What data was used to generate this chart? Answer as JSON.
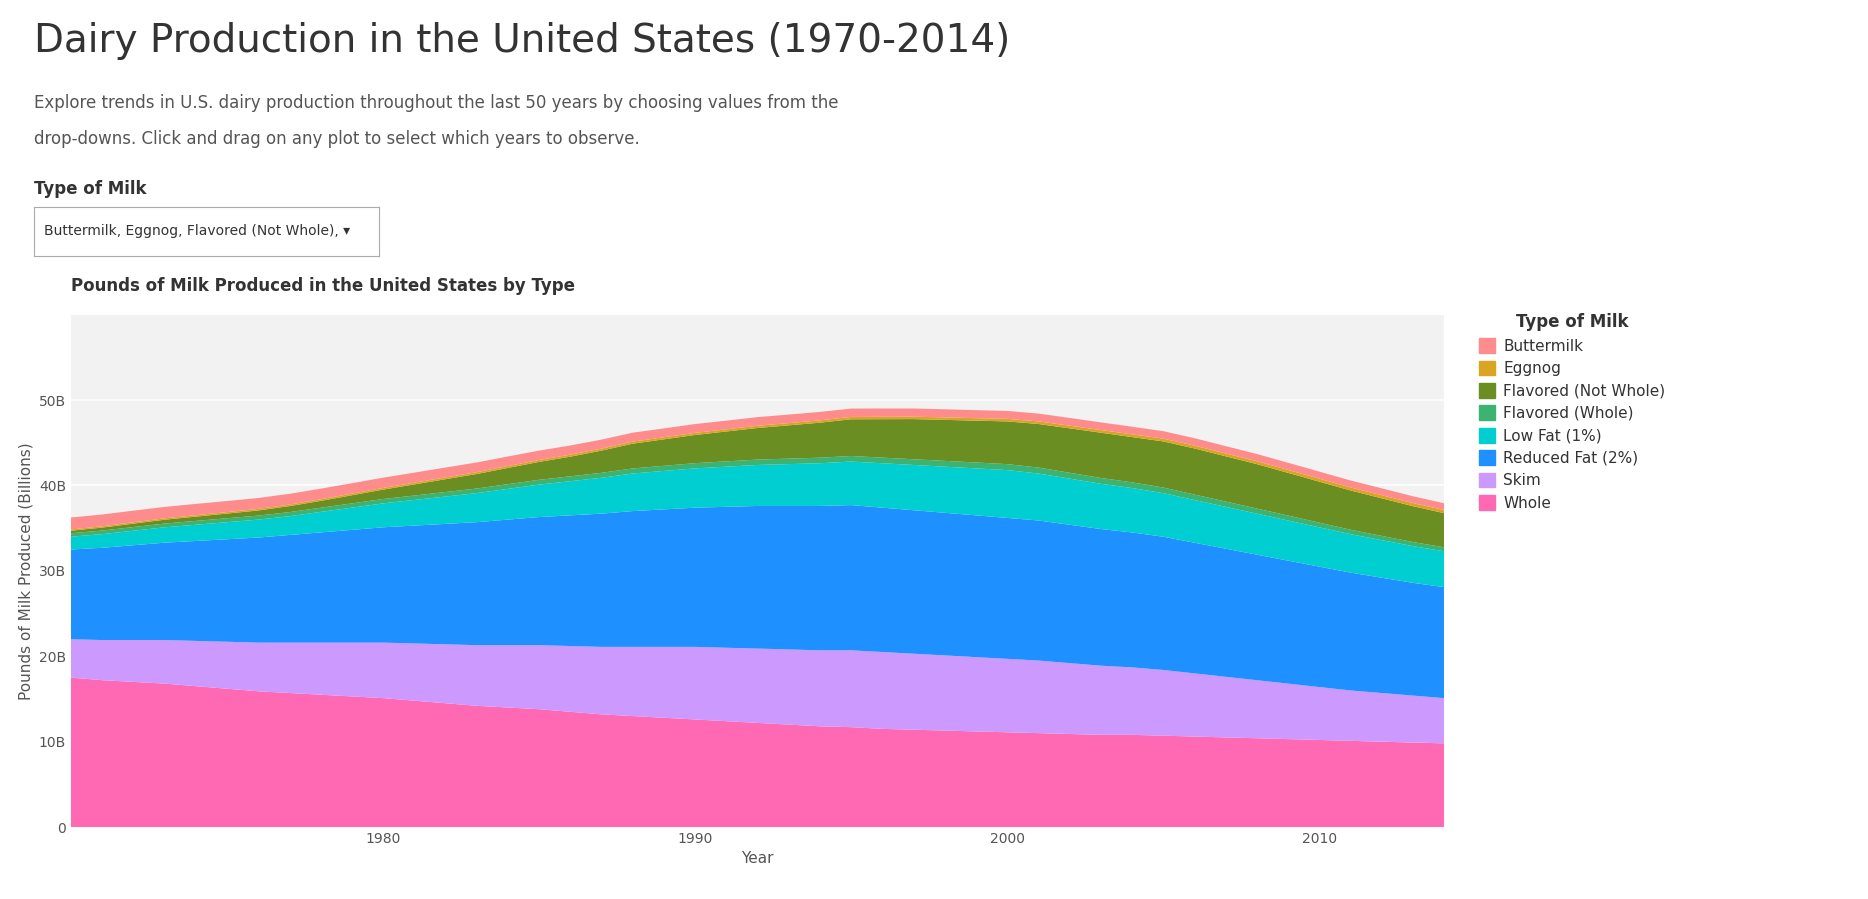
{
  "title": "Dairy Production in the United States (1970-2014)",
  "subtitle_line1": "Explore trends in U.S. dairy production throughout the last 50 years by choosing values from the",
  "subtitle_line2": "drop-downs. Click and drag on any plot to select which years to observe.",
  "dropdown_label": "Type of Milk",
  "dropdown_value": "Buttermilk, Eggnog, Flavored (Not Whole), ▾",
  "chart_title": "Pounds of Milk Produced in the United States by Type",
  "xlabel": "Year",
  "ylabel": "Pounds of Milk Produced (Billions)",
  "years": [
    1970,
    1971,
    1972,
    1973,
    1974,
    1975,
    1976,
    1977,
    1978,
    1979,
    1980,
    1981,
    1982,
    1983,
    1984,
    1985,
    1986,
    1987,
    1988,
    1989,
    1990,
    1991,
    1992,
    1993,
    1994,
    1995,
    1996,
    1997,
    1998,
    1999,
    2000,
    2001,
    2002,
    2003,
    2004,
    2005,
    2006,
    2007,
    2008,
    2009,
    2010,
    2011,
    2012,
    2013,
    2014
  ],
  "series": {
    "Whole": [
      17.5,
      17.2,
      17.0,
      16.8,
      16.5,
      16.2,
      15.9,
      15.7,
      15.5,
      15.3,
      15.1,
      14.8,
      14.5,
      14.2,
      14.0,
      13.8,
      13.5,
      13.2,
      13.0,
      12.8,
      12.6,
      12.4,
      12.2,
      12.0,
      11.8,
      11.7,
      11.5,
      11.4,
      11.3,
      11.2,
      11.1,
      11.0,
      10.9,
      10.8,
      10.8,
      10.7,
      10.6,
      10.5,
      10.4,
      10.3,
      10.2,
      10.1,
      10.0,
      9.9,
      9.8
    ],
    "Skim": [
      4.5,
      4.7,
      4.9,
      5.1,
      5.3,
      5.5,
      5.7,
      5.9,
      6.1,
      6.3,
      6.5,
      6.7,
      6.9,
      7.1,
      7.3,
      7.5,
      7.7,
      7.9,
      8.1,
      8.3,
      8.5,
      8.6,
      8.7,
      8.8,
      8.9,
      9.0,
      9.0,
      8.9,
      8.8,
      8.7,
      8.6,
      8.5,
      8.3,
      8.1,
      7.9,
      7.7,
      7.4,
      7.1,
      6.8,
      6.5,
      6.2,
      5.9,
      5.7,
      5.5,
      5.3
    ],
    "Reduced Fat (2%)": [
      10.5,
      10.8,
      11.1,
      11.4,
      11.7,
      12.0,
      12.3,
      12.6,
      12.9,
      13.2,
      13.5,
      13.8,
      14.1,
      14.4,
      14.7,
      15.0,
      15.3,
      15.6,
      15.9,
      16.1,
      16.3,
      16.5,
      16.7,
      16.8,
      16.9,
      17.0,
      16.9,
      16.8,
      16.7,
      16.6,
      16.5,
      16.4,
      16.2,
      16.0,
      15.8,
      15.6,
      15.3,
      15.0,
      14.7,
      14.4,
      14.1,
      13.8,
      13.5,
      13.2,
      13.0
    ],
    "Low Fat (1%)": [
      1.5,
      1.6,
      1.7,
      1.8,
      1.9,
      2.0,
      2.1,
      2.2,
      2.4,
      2.6,
      2.8,
      3.0,
      3.2,
      3.4,
      3.6,
      3.8,
      4.0,
      4.2,
      4.4,
      4.5,
      4.6,
      4.7,
      4.8,
      4.9,
      5.0,
      5.1,
      5.2,
      5.3,
      5.4,
      5.5,
      5.6,
      5.5,
      5.4,
      5.3,
      5.2,
      5.1,
      5.0,
      4.9,
      4.8,
      4.7,
      4.6,
      4.5,
      4.4,
      4.3,
      4.2
    ],
    "Flavored (Whole)": [
      0.4,
      0.42,
      0.43,
      0.44,
      0.45,
      0.46,
      0.47,
      0.48,
      0.49,
      0.5,
      0.51,
      0.52,
      0.53,
      0.54,
      0.55,
      0.56,
      0.57,
      0.58,
      0.59,
      0.6,
      0.61,
      0.62,
      0.63,
      0.64,
      0.65,
      0.65,
      0.66,
      0.67,
      0.68,
      0.69,
      0.7,
      0.7,
      0.69,
      0.68,
      0.67,
      0.66,
      0.64,
      0.62,
      0.6,
      0.58,
      0.55,
      0.52,
      0.5,
      0.48,
      0.46
    ],
    "Flavored (Not Whole)": [
      0.3,
      0.35,
      0.4,
      0.45,
      0.5,
      0.55,
      0.6,
      0.7,
      0.8,
      0.95,
      1.1,
      1.3,
      1.5,
      1.7,
      1.9,
      2.1,
      2.3,
      2.6,
      2.9,
      3.1,
      3.3,
      3.5,
      3.7,
      3.9,
      4.1,
      4.3,
      4.5,
      4.7,
      4.8,
      4.9,
      5.0,
      5.1,
      5.2,
      5.3,
      5.3,
      5.4,
      5.4,
      5.3,
      5.2,
      5.0,
      4.8,
      4.6,
      4.4,
      4.2,
      4.0
    ],
    "Eggnog": [
      0.15,
      0.15,
      0.16,
      0.16,
      0.17,
      0.17,
      0.18,
      0.18,
      0.19,
      0.19,
      0.2,
      0.2,
      0.21,
      0.21,
      0.22,
      0.22,
      0.23,
      0.23,
      0.24,
      0.24,
      0.25,
      0.25,
      0.26,
      0.26,
      0.27,
      0.27,
      0.28,
      0.28,
      0.29,
      0.29,
      0.3,
      0.3,
      0.31,
      0.31,
      0.32,
      0.32,
      0.33,
      0.33,
      0.34,
      0.34,
      0.35,
      0.35,
      0.36,
      0.36,
      0.37
    ],
    "Buttermilk": [
      1.4,
      1.38,
      1.36,
      1.34,
      1.32,
      1.3,
      1.28,
      1.26,
      1.24,
      1.22,
      1.2,
      1.18,
      1.16,
      1.14,
      1.12,
      1.1,
      1.08,
      1.06,
      1.05,
      1.04,
      1.03,
      1.02,
      1.01,
      1.0,
      0.99,
      0.98,
      0.97,
      0.96,
      0.95,
      0.94,
      0.93,
      0.92,
      0.91,
      0.9,
      0.89,
      0.88,
      0.87,
      0.86,
      0.85,
      0.84,
      0.83,
      0.82,
      0.81,
      0.8,
      0.79
    ]
  },
  "colors": {
    "Whole": "#FF69B4",
    "Skim": "#CC99FF",
    "Reduced Fat (2%)": "#1E90FF",
    "Low Fat (1%)": "#00CED1",
    "Flavored (Whole)": "#3CB371",
    "Flavored (Not Whole)": "#6B8E23",
    "Eggnog": "#DAA520",
    "Buttermilk": "#FF8C8C"
  },
  "stack_order": [
    "Whole",
    "Skim",
    "Reduced Fat (2%)",
    "Low Fat (1%)",
    "Flavored (Whole)",
    "Flavored (Not Whole)",
    "Eggnog",
    "Buttermilk"
  ],
  "legend_order": [
    "Buttermilk",
    "Eggnog",
    "Flavored (Not Whole)",
    "Flavored (Whole)",
    "Low Fat (1%)",
    "Reduced Fat (2%)",
    "Skim",
    "Whole"
  ],
  "ylim": [
    0,
    60
  ],
  "yticks": [
    0,
    10,
    20,
    30,
    40,
    50
  ],
  "xticks": [
    1980,
    1990,
    2000,
    2010
  ],
  "background_color": "#FFFFFF",
  "plot_bg_color": "#F2F2F2",
  "title_fontsize": 28,
  "subtitle_fontsize": 12,
  "label_fontsize": 12,
  "chart_title_fontsize": 12,
  "axis_label_fontsize": 11,
  "tick_fontsize": 10,
  "legend_title_fontsize": 12,
  "legend_fontsize": 11
}
